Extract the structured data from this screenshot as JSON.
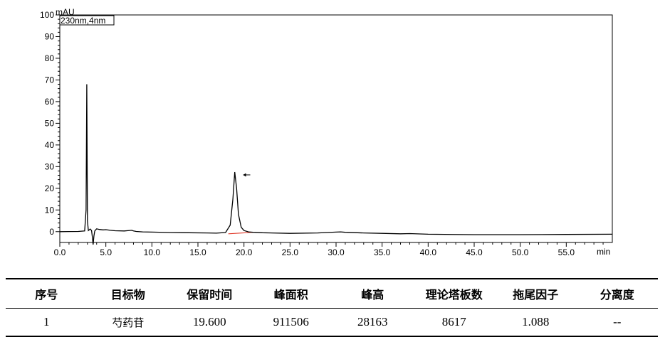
{
  "chart_data": {
    "type": "line",
    "y_unit": "mAU",
    "x_unit": "min",
    "channel_label": "230nm,4nm",
    "xlim": [
      0,
      60
    ],
    "ylim": [
      -5,
      100
    ],
    "x_ticks": [
      "0.0",
      "5.0",
      "10.0",
      "15.0",
      "20.0",
      "25.0",
      "30.0",
      "35.0",
      "40.0",
      "45.0",
      "50.0",
      "55.0"
    ],
    "y_ticks": [
      "0",
      "10",
      "20",
      "30",
      "40",
      "50",
      "60",
      "70",
      "80",
      "90",
      "100"
    ],
    "grid": false,
    "x": [
      0,
      1,
      2,
      2.7,
      2.85,
      2.93,
      3.0,
      3.1,
      3.3,
      3.45,
      3.55,
      3.62,
      3.7,
      3.8,
      4.0,
      4.3,
      4.7,
      5.0,
      5.5,
      6,
      7,
      7.8,
      8.0,
      8.3,
      9,
      10,
      12,
      14,
      16,
      17,
      18,
      18.5,
      18.8,
      19.0,
      19.2,
      19.4,
      19.7,
      20,
      20.5,
      21,
      22,
      25,
      28,
      30,
      30.5,
      31,
      33,
      35,
      37,
      38,
      40,
      45,
      50,
      55,
      60
    ],
    "y": [
      0,
      0.05,
      0.1,
      0.3,
      10,
      68,
      5,
      0.5,
      1.2,
      0.5,
      -3,
      -6,
      -2,
      0.3,
      1.3,
      1.0,
      0.8,
      0.9,
      0.6,
      0.4,
      0.3,
      0.6,
      0.3,
      0.1,
      -0.1,
      -0.2,
      -0.4,
      -0.5,
      -0.6,
      -0.7,
      -0.4,
      3,
      15,
      27.5,
      20,
      8,
      2,
      0.5,
      -0.1,
      -0.3,
      -0.5,
      -0.8,
      -0.6,
      -0.2,
      -0.1,
      -0.3,
      -0.6,
      -0.8,
      -1.0,
      -0.9,
      -1.2,
      -1.4,
      -1.4,
      -1.3,
      -1.2
    ],
    "baseline_segment": {
      "x": [
        18.3,
        21.0
      ],
      "y": [
        -1.0,
        -0.3
      ]
    },
    "peak_marker": {
      "x": 19.6,
      "y": 27.5
    }
  },
  "table": {
    "headers": [
      "序号",
      "目标物",
      "保留时间",
      "峰面积",
      "峰高",
      "理论塔板数",
      "拖尾因子",
      "分离度"
    ],
    "rows": [
      [
        "1",
        "芍药苷",
        "19.600",
        "911506",
        "28163",
        "8617",
        "1.088",
        "--"
      ]
    ]
  }
}
